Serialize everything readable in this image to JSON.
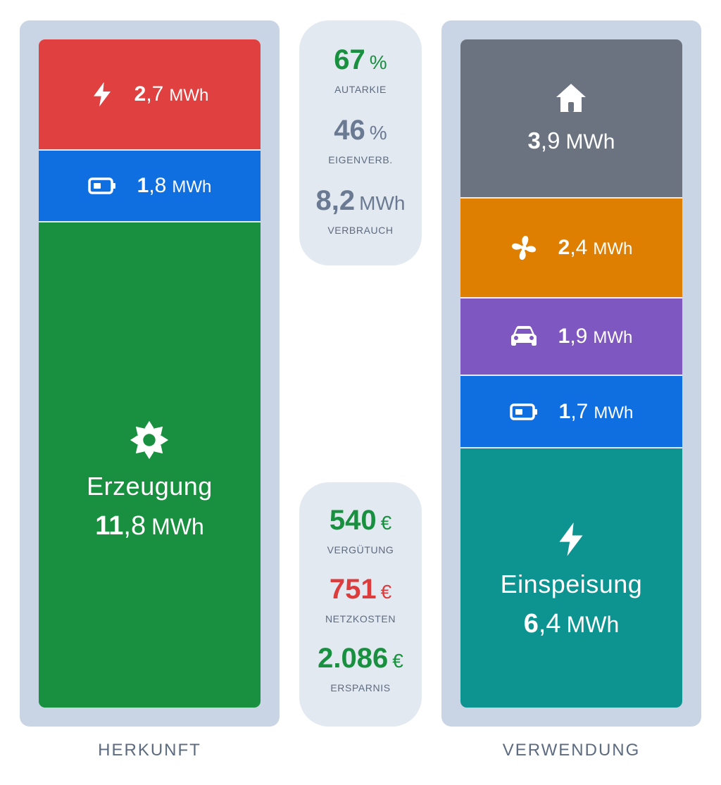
{
  "colors": {
    "red": "#e0403f",
    "blue": "#0f6fe0",
    "green": "#18903f",
    "gray": "#6b7280",
    "orange": "#df7f02",
    "purple": "#7f57c0",
    "teal": "#0e9490",
    "frame": "#c9d5e4",
    "card": "#e3e9f1",
    "stat_green": "#18903f",
    "stat_gray": "#6a7a92",
    "stat_red": "#dc3c3c"
  },
  "herkunft": {
    "title": "HERKUNFT",
    "netz": {
      "icon": "lightning-bolt-icon",
      "int": "2",
      "dec": ",7",
      "unit": "MWh"
    },
    "batterie": {
      "icon": "battery-icon",
      "int": "1",
      "dec": ",8",
      "unit": "MWh"
    },
    "erzeugung": {
      "icon": "sun-icon",
      "label": "Erzeugung",
      "int": "11",
      "dec": ",8",
      "unit": "MWh"
    }
  },
  "kennzahlen": {
    "autarkie": {
      "value": "67",
      "unit": "%",
      "label": "AUTARKIE"
    },
    "eigenverbrauch": {
      "value": "46",
      "unit": "%",
      "label": "EIGENVERB."
    },
    "verbrauch": {
      "value": "8,2",
      "unit": "MWh",
      "label": "VERBRAUCH"
    }
  },
  "finanzen": {
    "verguetung": {
      "value": "540",
      "unit": "€",
      "label": "VERGÜTUNG"
    },
    "netzkosten": {
      "value": "751",
      "unit": "€",
      "label": "NETZKOSTEN"
    },
    "ersparnis": {
      "value": "2.086",
      "unit": "€",
      "label": "ERSPARNIS"
    }
  },
  "verwendung": {
    "title": "VERWENDUNG",
    "haus": {
      "icon": "house-icon",
      "int": "3",
      "dec": ",9",
      "unit": "MWh"
    },
    "waermepumpe": {
      "icon": "fan-icon",
      "int": "2",
      "dec": ",4",
      "unit": "MWh"
    },
    "auto": {
      "icon": "car-icon",
      "int": "1",
      "dec": ",9",
      "unit": "MWh"
    },
    "batterie": {
      "icon": "battery-icon",
      "int": "1",
      "dec": ",7",
      "unit": "MWh"
    },
    "einspeisung": {
      "icon": "lightning-bolt-icon",
      "label": "Einspeisung",
      "int": "6",
      "dec": ",4",
      "unit": "MWh"
    }
  }
}
